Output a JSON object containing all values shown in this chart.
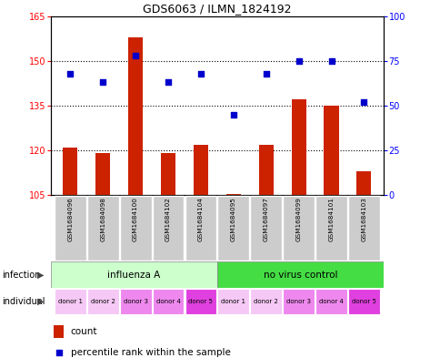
{
  "title": "GDS6063 / ILMN_1824192",
  "samples": [
    "GSM1684096",
    "GSM1684098",
    "GSM1684100",
    "GSM1684102",
    "GSM1684104",
    "GSM1684095",
    "GSM1684097",
    "GSM1684099",
    "GSM1684101",
    "GSM1684103"
  ],
  "bar_values": [
    121,
    119,
    158,
    119,
    122,
    105.5,
    122,
    137,
    135,
    113
  ],
  "dot_values": [
    68,
    63,
    78,
    63,
    68,
    45,
    68,
    75,
    75,
    52
  ],
  "ylim_left": [
    105,
    165
  ],
  "ylim_right": [
    0,
    100
  ],
  "yticks_left": [
    105,
    120,
    135,
    150,
    165
  ],
  "yticks_right": [
    0,
    25,
    50,
    75,
    100
  ],
  "bar_color": "#cc2200",
  "dot_color": "#0000cc",
  "infection_labels": [
    "influenza A",
    "no virus control"
  ],
  "individual_labels": [
    "donor 1",
    "donor 2",
    "donor 3",
    "donor 4",
    "donor 5",
    "donor 1",
    "donor 2",
    "donor 3",
    "donor 4",
    "donor 5"
  ],
  "legend_count_label": "count",
  "legend_dot_label": "percentile rank within the sample"
}
